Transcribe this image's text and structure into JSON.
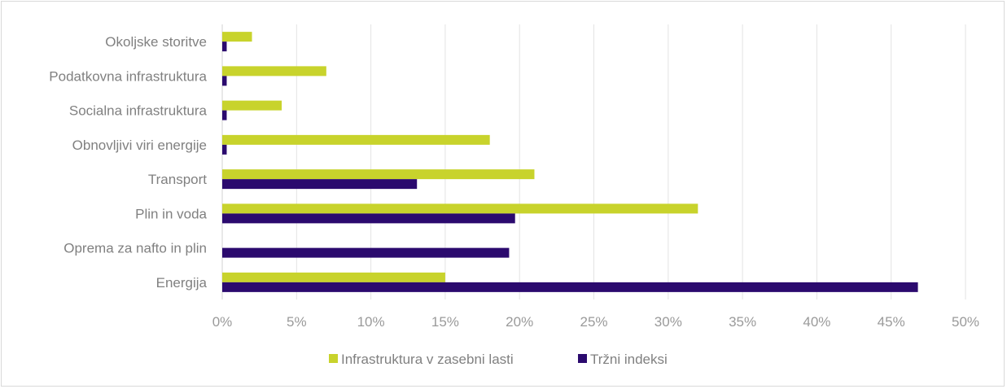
{
  "chart_data": {
    "type": "bar",
    "orientation": "horizontal",
    "categories": [
      "Okoljske storitve",
      "Podatkovna infrastruktura",
      "Socialna infrastruktura",
      "Obnovljivi viri energije",
      "Transport",
      "Plin in voda",
      "Oprema za nafto in plin",
      "Energija"
    ],
    "series": [
      {
        "name": "Infrastruktura v zasebni lasti",
        "color": "#c8d32c",
        "values": [
          2,
          7,
          4,
          18,
          21,
          32,
          0,
          15
        ]
      },
      {
        "name": "Tržni indeksi",
        "color": "#2b0a6e",
        "values": [
          0.3,
          0.3,
          0.3,
          0.3,
          13.1,
          19.7,
          19.3,
          46.8
        ]
      }
    ],
    "xlim": [
      0,
      50
    ],
    "xticks": [
      "0%",
      "5%",
      "10%",
      "15%",
      "20%",
      "25%",
      "30%",
      "35%",
      "40%",
      "45%",
      "50%"
    ],
    "grid": true,
    "legend_position": "bottom"
  }
}
